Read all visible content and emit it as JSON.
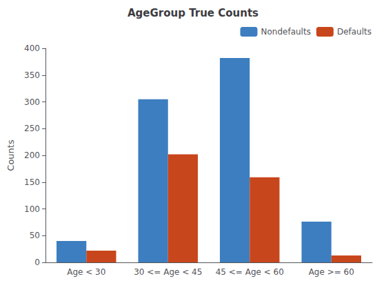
{
  "chart_data": {
    "type": "bar",
    "title": "AgeGroup True Counts",
    "ylabel": "Counts",
    "categories": [
      "Age < 30",
      "30 <= Age < 45",
      "45 <= Age < 60",
      "Age >= 60"
    ],
    "series": [
      {
        "name": "Nondefaults",
        "color": "#3C7EBF",
        "values": [
          40,
          305,
          382,
          76
        ]
      },
      {
        "name": "Defaults",
        "color": "#C8461B",
        "values": [
          22,
          202,
          159,
          13
        ]
      }
    ],
    "ylim": [
      0,
      400
    ],
    "yticks": [
      0,
      50,
      100,
      150,
      200,
      250,
      300,
      350,
      400
    ],
    "grid": false,
    "legend": "upper right"
  }
}
